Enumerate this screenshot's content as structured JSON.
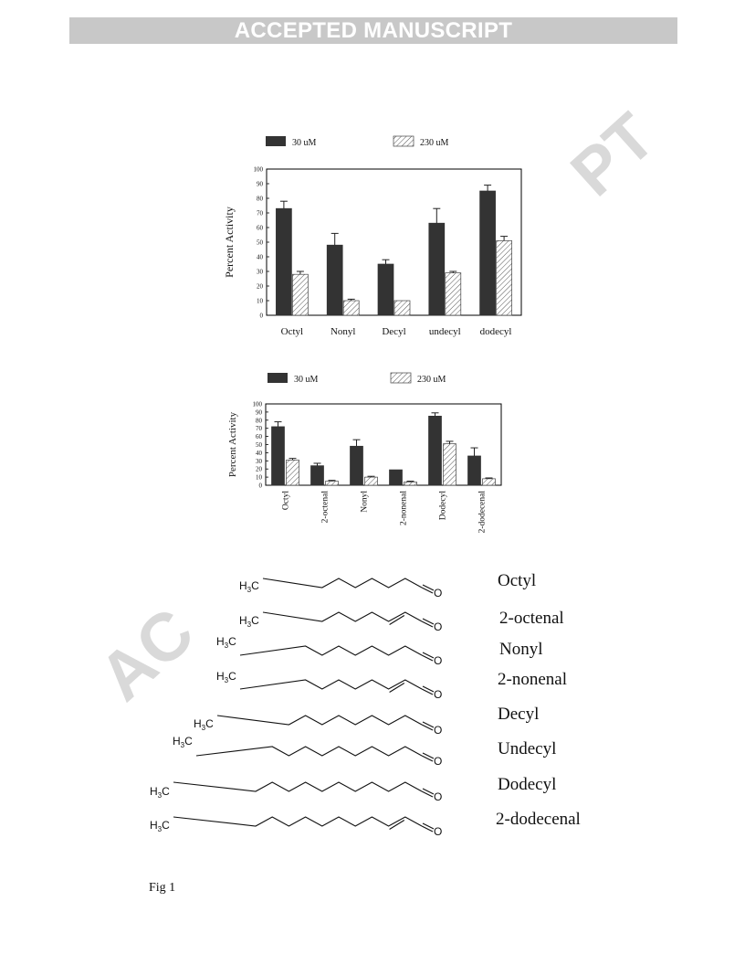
{
  "banner": "ACCEPTED MANUSCRIPT",
  "watermark": {
    "top": "PT",
    "bottom": "AC"
  },
  "colors": {
    "dark_bar": "#333333",
    "hatched_bar": "#ffffff"
  },
  "figure_label": "Fig 1",
  "chart_data": [
    {
      "type": "bar",
      "legend": [
        "30 uM",
        "230 uM"
      ],
      "legend_position": "top",
      "ylabel": "Percent Activity",
      "ylim": [
        0,
        100
      ],
      "yticks": [
        "0",
        "10",
        "20",
        "30",
        "40",
        "50",
        "60",
        "70",
        "80",
        "90",
        "100"
      ],
      "categories": [
        "Octyl",
        "Nonyl",
        "Decyl",
        "undecyl",
        "dodecyl"
      ],
      "series": [
        {
          "name": "30 uM",
          "values": [
            73,
            48,
            35,
            63,
            85
          ],
          "errors": [
            5,
            8,
            3,
            10,
            4
          ]
        },
        {
          "name": "230 uM",
          "values": [
            28,
            10,
            10,
            29,
            51
          ],
          "errors": [
            2,
            1,
            0,
            1,
            3
          ]
        }
      ]
    },
    {
      "type": "bar",
      "legend": [
        "30 uM",
        "230 uM"
      ],
      "legend_position": "top",
      "ylabel": "Percent Activity",
      "ylim": [
        0,
        100
      ],
      "yticks": [
        "0",
        "10",
        "20",
        "30",
        "40",
        "50",
        "60",
        "70",
        "80",
        "90",
        "100"
      ],
      "categories": [
        "Octyl",
        "2-octenal",
        "Nonyl",
        "2-nonenal",
        "Dodecyl",
        "2-dodecenal"
      ],
      "series": [
        {
          "name": "30 uM",
          "values": [
            72,
            24,
            48,
            19,
            85,
            36
          ],
          "errors": [
            6,
            3,
            8,
            0,
            4,
            10
          ]
        },
        {
          "name": "230 uM",
          "values": [
            31,
            5,
            10,
            4,
            51,
            8
          ],
          "errors": [
            2,
            1,
            1,
            1,
            3,
            1
          ]
        }
      ]
    }
  ],
  "molecules": [
    {
      "name": "Octyl",
      "carbons": 8,
      "double_bond": false
    },
    {
      "name": "2-octenal",
      "carbons": 8,
      "double_bond": true
    },
    {
      "name": "Nonyl",
      "carbons": 9,
      "double_bond": false
    },
    {
      "name": "2-nonenal",
      "carbons": 9,
      "double_bond": true
    },
    {
      "name": "Decyl",
      "carbons": 10,
      "double_bond": false
    },
    {
      "name": "Undecyl",
      "carbons": 11,
      "double_bond": false
    },
    {
      "name": "Dodecyl",
      "carbons": 12,
      "double_bond": false
    },
    {
      "name": "2-dodecenal",
      "carbons": 12,
      "double_bond": true
    }
  ],
  "chem_labels": {
    "methyl": "H",
    "methyl_c": "C",
    "methyl_sub": "3",
    "oxygen": "O"
  }
}
